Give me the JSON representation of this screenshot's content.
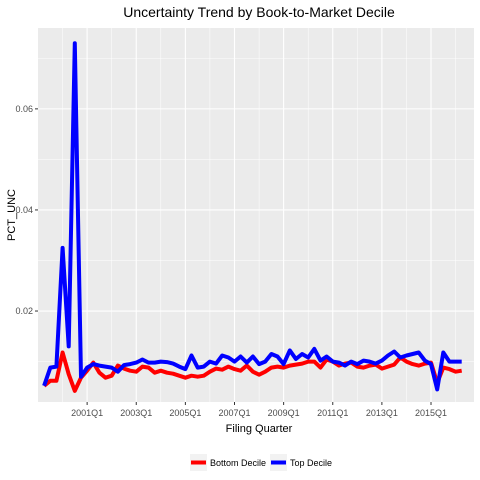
{
  "chart_data": {
    "type": "line",
    "title": "Uncertainty Trend by Book-to-Market Decile",
    "xlabel": "Filing Quarter",
    "ylabel": "PCT_UNC",
    "x_ticks": [
      "2001Q1",
      "2003Q1",
      "2005Q1",
      "2007Q1",
      "2009Q1",
      "2011Q1",
      "2013Q1",
      "2015Q1"
    ],
    "y_ticks": [
      "0.02",
      "0.04",
      "0.06"
    ],
    "y_tick_values": [
      0.02,
      0.04,
      0.06
    ],
    "ylim": [
      0.002,
      0.076
    ],
    "xlim": [
      "1999Q1",
      "2016Q4"
    ],
    "grid": true,
    "legend_position": "bottom",
    "x": [
      "1999Q2",
      "1999Q3",
      "1999Q4",
      "2000Q1",
      "2000Q2",
      "2000Q3",
      "2000Q4",
      "2001Q1",
      "2001Q2",
      "2001Q3",
      "2001Q4",
      "2002Q1",
      "2002Q2",
      "2002Q3",
      "2002Q4",
      "2003Q1",
      "2003Q2",
      "2003Q3",
      "2003Q4",
      "2004Q1",
      "2004Q2",
      "2004Q3",
      "2004Q4",
      "2005Q1",
      "2005Q2",
      "2005Q3",
      "2005Q4",
      "2006Q1",
      "2006Q2",
      "2006Q3",
      "2006Q4",
      "2007Q1",
      "2007Q2",
      "2007Q3",
      "2007Q4",
      "2008Q1",
      "2008Q2",
      "2008Q3",
      "2008Q4",
      "2009Q1",
      "2009Q2",
      "2009Q3",
      "2009Q4",
      "2010Q1",
      "2010Q2",
      "2010Q3",
      "2010Q4",
      "2011Q1",
      "2011Q2",
      "2011Q3",
      "2011Q4",
      "2012Q1",
      "2012Q2",
      "2012Q3",
      "2012Q4",
      "2013Q1",
      "2013Q2",
      "2013Q3",
      "2013Q4",
      "2014Q1",
      "2014Q2",
      "2014Q3",
      "2014Q4",
      "2015Q1",
      "2015Q2",
      "2015Q3",
      "2015Q4",
      "2016Q1",
      "2016Q2"
    ],
    "series": [
      {
        "name": "Bottom Decile",
        "color": "#FF0000",
        "values": [
          0.0052,
          0.0062,
          0.0062,
          0.0118,
          0.0075,
          0.0042,
          0.0068,
          0.0082,
          0.0098,
          0.0078,
          0.0068,
          0.0072,
          0.0092,
          0.0086,
          0.0082,
          0.008,
          0.009,
          0.0088,
          0.0078,
          0.0082,
          0.0078,
          0.0076,
          0.0072,
          0.0068,
          0.0072,
          0.007,
          0.0072,
          0.008,
          0.0086,
          0.0084,
          0.009,
          0.0085,
          0.0082,
          0.0092,
          0.008,
          0.0074,
          0.008,
          0.0088,
          0.009,
          0.0088,
          0.0092,
          0.0094,
          0.0096,
          0.01,
          0.01,
          0.0088,
          0.0104,
          0.01,
          0.0092,
          0.0096,
          0.0098,
          0.009,
          0.0088,
          0.0092,
          0.0094,
          0.0086,
          0.009,
          0.0094,
          0.0108,
          0.01,
          0.0095,
          0.0092,
          0.0096,
          0.0098,
          0.0058,
          0.0088,
          0.0085,
          0.008,
          0.0082
        ]
      },
      {
        "name": "Top Decile",
        "color": "#0000FF",
        "values": [
          0.0052,
          0.0088,
          0.009,
          0.0325,
          0.013,
          0.073,
          0.007,
          0.0088,
          0.0095,
          0.0092,
          0.009,
          0.0088,
          0.008,
          0.0093,
          0.0095,
          0.0098,
          0.0104,
          0.0098,
          0.0098,
          0.01,
          0.0099,
          0.0096,
          0.009,
          0.0085,
          0.0112,
          0.0088,
          0.009,
          0.01,
          0.0096,
          0.0112,
          0.0108,
          0.01,
          0.011,
          0.0098,
          0.011,
          0.0095,
          0.01,
          0.0115,
          0.011,
          0.0095,
          0.0122,
          0.0105,
          0.0115,
          0.0108,
          0.0125,
          0.0102,
          0.011,
          0.01,
          0.0098,
          0.0092,
          0.01,
          0.0095,
          0.0102,
          0.01,
          0.0096,
          0.0102,
          0.0112,
          0.012,
          0.0108,
          0.0112,
          0.0115,
          0.0118,
          0.0102,
          0.0095,
          0.0045,
          0.0118,
          0.01,
          0.01,
          0.01
        ]
      }
    ]
  }
}
